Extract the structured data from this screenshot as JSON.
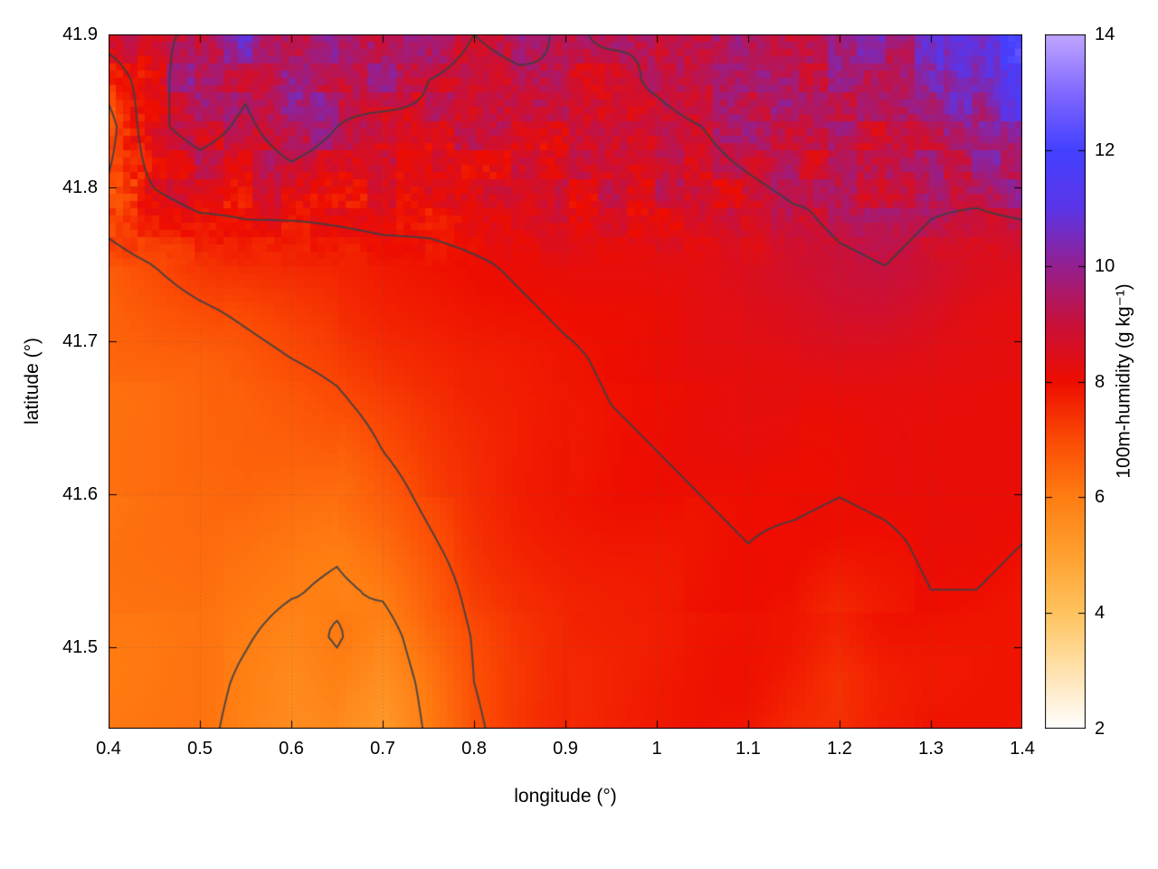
{
  "chart_data": {
    "type": "heatmap",
    "title": "",
    "xlabel": "longitude (°)",
    "ylabel": "latitude (°)",
    "colorbar_label": "100m-humidity (g kg⁻¹)",
    "x_range": [
      0.4,
      1.4
    ],
    "y_range": [
      41.447,
      41.9
    ],
    "x_ticks": [
      0.4,
      0.5,
      0.6,
      0.7,
      0.8,
      0.9,
      1.0,
      1.1,
      1.2,
      1.3,
      1.4
    ],
    "x_tick_labels": [
      "0.4",
      "0.5",
      "0.6",
      "0.7",
      "0.8",
      "0.9",
      "1",
      "1.1",
      "1.2",
      "1.3",
      "1.4"
    ],
    "y_ticks": [
      41.5,
      41.6,
      41.7,
      41.8,
      41.9
    ],
    "y_tick_labels": [
      "41.5",
      "41.6",
      "41.7",
      "41.8",
      "41.9"
    ],
    "colorbar_range": [
      2,
      14
    ],
    "colorbar_ticks": [
      2,
      4,
      6,
      8,
      10,
      12,
      14
    ],
    "colorbar_tick_labels": [
      "2",
      "4",
      "6",
      "8",
      "10",
      "12",
      "14"
    ],
    "grid_lines": true,
    "contour_levels": [
      6,
      7,
      8,
      9
    ],
    "contour_color": "#3a4045",
    "axis_color": "#000000",
    "colormap_stops": [
      [
        2,
        "#ffffff"
      ],
      [
        3,
        "#ffe2ae"
      ],
      [
        4,
        "#ffc35e"
      ],
      [
        5,
        "#ffa030"
      ],
      [
        6,
        "#ff7d12"
      ],
      [
        7,
        "#fb4a04"
      ],
      [
        8,
        "#ee0d00"
      ],
      [
        9,
        "#c8103a"
      ],
      [
        10,
        "#942090"
      ],
      [
        11,
        "#5b35e8"
      ],
      [
        12,
        "#4340ff"
      ],
      [
        13,
        "#8168ff"
      ],
      [
        14,
        "#c0a6ff"
      ]
    ],
    "grid": {
      "nx": 21,
      "ny": 16,
      "lon_min": 0.4,
      "lon_max": 1.4,
      "lat_min": 41.447,
      "lat_max": 41.9,
      "rows_order": "bottom_to_top",
      "values": [
        [
          6.1,
          6.1,
          6.15,
          5.8,
          5.5,
          5.7,
          5.3,
          6.1,
          6.9,
          7.3,
          7.55,
          7.65,
          7.75,
          7.85,
          7.85,
          7.6,
          7.5,
          7.8,
          7.9,
          7.85,
          7.8
        ],
        [
          6.1,
          6.15,
          6.2,
          5.9,
          5.6,
          5.85,
          5.5,
          6.2,
          7.0,
          7.35,
          7.6,
          7.7,
          7.8,
          7.85,
          7.9,
          7.7,
          7.4,
          7.75,
          7.9,
          7.9,
          7.9
        ],
        [
          6.15,
          6.2,
          6.25,
          6.05,
          5.8,
          6.05,
          5.7,
          6.4,
          7.05,
          7.45,
          7.65,
          7.75,
          7.8,
          7.9,
          7.9,
          7.8,
          7.55,
          7.85,
          7.95,
          7.95,
          7.95
        ],
        [
          6.15,
          6.2,
          6.3,
          6.2,
          6.05,
          5.9,
          6.1,
          6.6,
          7.2,
          7.5,
          7.7,
          7.8,
          7.85,
          7.9,
          7.95,
          7.9,
          7.7,
          7.9,
          8.0,
          8.0,
          7.95
        ],
        [
          6.2,
          6.25,
          6.3,
          6.3,
          6.2,
          6.1,
          6.45,
          6.9,
          7.35,
          7.6,
          7.75,
          7.85,
          7.9,
          7.95,
          8.0,
          7.95,
          7.9,
          7.95,
          8.05,
          8.05,
          8.0
        ],
        [
          6.2,
          6.3,
          6.35,
          6.4,
          6.35,
          6.35,
          6.7,
          7.15,
          7.5,
          7.7,
          7.8,
          7.9,
          7.95,
          8.0,
          8.05,
          8.05,
          8.0,
          8.05,
          8.1,
          8.05,
          8.05
        ],
        [
          6.3,
          6.35,
          6.4,
          6.5,
          6.5,
          6.6,
          7.0,
          7.35,
          7.6,
          7.75,
          7.85,
          7.95,
          8.0,
          8.05,
          8.1,
          8.1,
          8.1,
          8.15,
          8.15,
          8.1,
          8.05
        ],
        [
          6.3,
          6.4,
          6.5,
          6.6,
          6.7,
          6.9,
          7.2,
          7.5,
          7.7,
          7.8,
          7.9,
          8.0,
          8.05,
          8.1,
          8.15,
          8.15,
          8.2,
          8.25,
          8.25,
          8.2,
          8.1
        ],
        [
          6.4,
          6.5,
          6.6,
          6.8,
          7.0,
          7.15,
          7.4,
          7.6,
          7.75,
          7.85,
          7.95,
          8.05,
          8.1,
          8.15,
          8.2,
          8.3,
          8.4,
          8.45,
          8.4,
          8.3,
          8.2
        ],
        [
          6.5,
          6.7,
          6.9,
          7.1,
          7.3,
          7.45,
          7.6,
          7.7,
          7.85,
          7.95,
          8.05,
          8.1,
          8.15,
          8.25,
          8.3,
          8.45,
          8.65,
          8.75,
          8.6,
          8.4,
          8.3
        ],
        [
          6.7,
          7.0,
          7.3,
          7.5,
          7.6,
          7.7,
          7.8,
          7.85,
          7.95,
          8.05,
          8.15,
          8.2,
          8.25,
          8.35,
          8.5,
          8.7,
          8.9,
          9.0,
          8.8,
          8.6,
          8.5
        ],
        [
          7.2,
          7.6,
          7.9,
          8.0,
          8.0,
          8.05,
          8.1,
          8.1,
          8.15,
          8.2,
          8.3,
          8.35,
          8.45,
          8.55,
          8.7,
          8.9,
          9.1,
          9.2,
          9.0,
          8.9,
          9.0
        ],
        [
          7.0,
          8.2,
          8.6,
          8.4,
          8.8,
          8.5,
          8.3,
          8.4,
          8.45,
          8.4,
          8.5,
          8.6,
          8.7,
          8.8,
          9.0,
          9.2,
          9.0,
          9.3,
          9.2,
          9.3,
          9.6
        ],
        [
          6.6,
          8.8,
          9.4,
          8.8,
          9.6,
          9.0,
          8.6,
          8.8,
          8.7,
          8.6,
          8.8,
          8.9,
          8.8,
          9.0,
          9.3,
          9.0,
          9.4,
          9.1,
          9.5,
          9.8,
          10.6
        ],
        [
          7.4,
          8.6,
          9.8,
          9.2,
          10.2,
          9.4,
          9.8,
          9.0,
          8.8,
          8.9,
          9.0,
          8.8,
          9.1,
          9.4,
          9.0,
          9.3,
          9.6,
          9.2,
          9.8,
          10.8,
          11.6
        ],
        [
          8.4,
          8.8,
          9.2,
          10.4,
          9.6,
          10.0,
          9.2,
          9.4,
          9.0,
          9.2,
          8.9,
          9.1,
          9.0,
          9.2,
          9.4,
          9.1,
          9.5,
          9.9,
          10.2,
          11.2,
          12.0
        ]
      ]
    }
  }
}
